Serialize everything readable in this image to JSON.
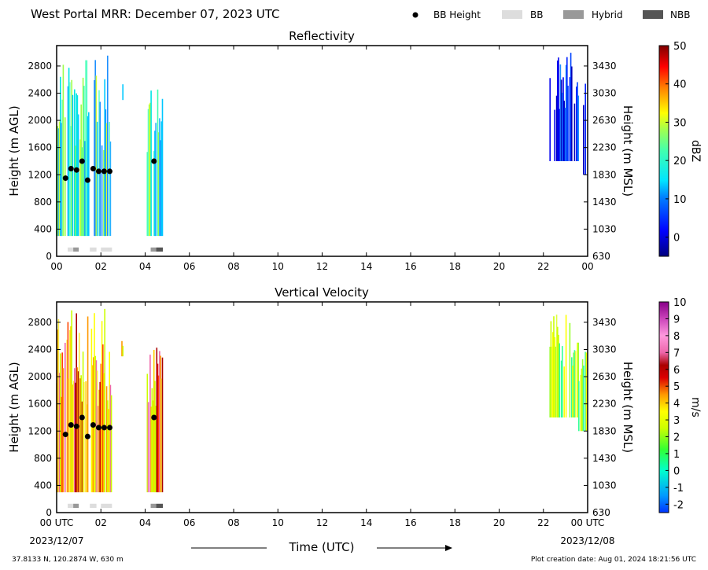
{
  "header": {
    "title": "West Portal MRR:  December 07, 2023 UTC",
    "legend": [
      {
        "label": "BB Height",
        "marker": "dot",
        "color": "#000000"
      },
      {
        "label": "BB",
        "marker": "box",
        "color": "#dddddd"
      },
      {
        "label": "Hybrid",
        "marker": "box",
        "color": "#999999"
      },
      {
        "label": "NBB",
        "marker": "box",
        "color": "#555555"
      }
    ]
  },
  "footer": {
    "location": "37.8133 N, 120.2874 W, 630 m",
    "creation": "Plot creation date: Aug 01, 2024 18:21:56 UTC",
    "start_date": "2023/12/07",
    "end_date": "2023/12/08",
    "xlabel": "Time (UTC)"
  },
  "colors": {
    "low": "#0000cc",
    "mid": "#00dddd",
    "high": "#ffff00",
    "peak": "#cc0000",
    "bb": "#dddddd",
    "hybrid": "#999999",
    "nbb": "#555555"
  },
  "chart_data": [
    {
      "type": "heatmap",
      "title": "Reflectivity",
      "xlabel": "",
      "ylabel": "Height (m AGL)",
      "ylabel_right": "Height (m MSL)",
      "xlim": [
        0,
        24
      ],
      "ylim": [
        0,
        3100
      ],
      "x_ticks": [
        "00",
        "02",
        "04",
        "06",
        "08",
        "10",
        "12",
        "14",
        "16",
        "18",
        "20",
        "22",
        "00"
      ],
      "y_ticks": [
        "0",
        "400",
        "800",
        "1200",
        "1600",
        "2000",
        "2400",
        "2800"
      ],
      "y_ticks_right": [
        "630",
        "1030",
        "1430",
        "1830",
        "2230",
        "2630",
        "3030",
        "3430"
      ],
      "colorbar": {
        "label": "dBZ",
        "ticks": [
          "50",
          "40",
          "30",
          "20",
          "10",
          "0"
        ],
        "range": [
          -5,
          50
        ]
      },
      "bb_height": {
        "x": [
          0.4,
          0.65,
          0.9,
          1.15,
          1.4,
          1.65,
          1.9,
          2.15,
          2.4,
          4.4
        ],
        "y": [
          1150,
          1290,
          1270,
          1400,
          1120,
          1290,
          1250,
          1250,
          1250,
          1400
        ]
      },
      "bb_type": [
        {
          "start": 0.5,
          "end": 0.75,
          "type": "BB"
        },
        {
          "start": 0.75,
          "end": 1.0,
          "type": "Hybrid"
        },
        {
          "start": 1.5,
          "end": 1.8,
          "type": "BB"
        },
        {
          "start": 2.0,
          "end": 2.5,
          "type": "BB"
        },
        {
          "start": 4.25,
          "end": 4.5,
          "type": "Hybrid"
        },
        {
          "start": 4.5,
          "end": 4.8,
          "type": "NBB"
        }
      ]
    },
    {
      "type": "heatmap",
      "title": "Vertical Velocity",
      "xlabel": "Time (UTC)",
      "ylabel": "Height (m AGL)",
      "ylabel_right": "Height (m MSL)",
      "xlim": [
        0,
        24
      ],
      "ylim": [
        0,
        3100
      ],
      "x_ticks": [
        "00 UTC",
        "02",
        "04",
        "06",
        "08",
        "10",
        "12",
        "14",
        "16",
        "18",
        "20",
        "22",
        "00 UTC"
      ],
      "y_ticks": [
        "0",
        "400",
        "800",
        "1200",
        "1600",
        "2000",
        "2400",
        "2800"
      ],
      "y_ticks_right": [
        "630",
        "1030",
        "1430",
        "1830",
        "2230",
        "2630",
        "3030",
        "3430"
      ],
      "colorbar": {
        "label": "m/s",
        "ticks": [
          "10",
          "9",
          "8",
          "7",
          "6",
          "5",
          "4",
          "3",
          "2",
          "1",
          "0",
          "-1",
          "-2"
        ],
        "range": [
          -2.5,
          10
        ]
      },
      "bb_height": {
        "x": [
          0.4,
          0.65,
          0.9,
          1.15,
          1.4,
          1.65,
          1.9,
          2.15,
          2.4,
          4.4
        ],
        "y": [
          1150,
          1290,
          1270,
          1400,
          1120,
          1290,
          1250,
          1250,
          1250,
          1400
        ]
      },
      "bb_type": [
        {
          "start": 0.5,
          "end": 0.75,
          "type": "BB"
        },
        {
          "start": 0.75,
          "end": 1.0,
          "type": "Hybrid"
        },
        {
          "start": 1.5,
          "end": 1.8,
          "type": "BB"
        },
        {
          "start": 2.0,
          "end": 2.5,
          "type": "BB"
        },
        {
          "start": 4.25,
          "end": 4.5,
          "type": "Hybrid"
        },
        {
          "start": 4.5,
          "end": 4.8,
          "type": "NBB"
        }
      ]
    }
  ]
}
